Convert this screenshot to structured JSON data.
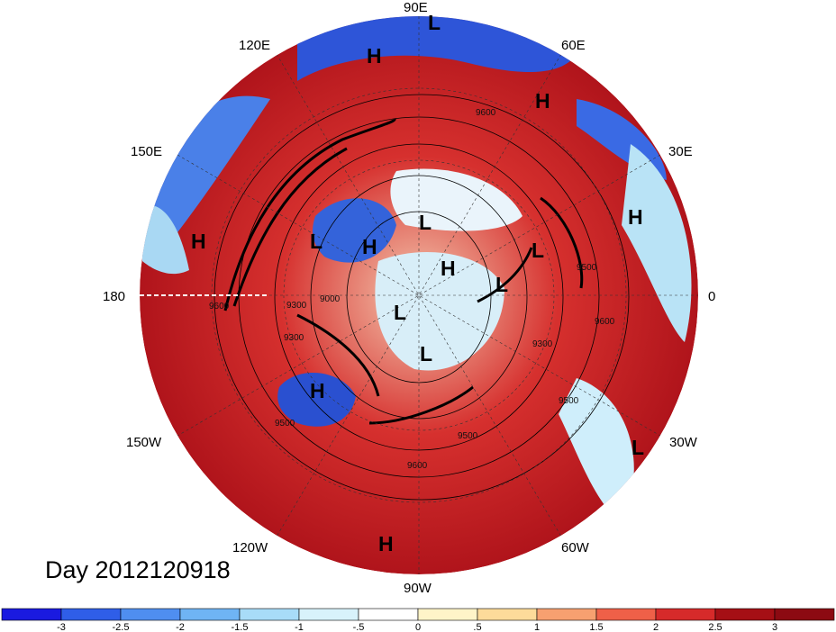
{
  "map": {
    "projection": "north-polar-stereographic",
    "lon_labels": {
      "top": "90E",
      "upper_left": "120E",
      "upper_right": "60E",
      "left_upper": "150E",
      "right_upper": "30E",
      "left": "180",
      "right": "0",
      "left_lower": "150W",
      "right_lower": "30W",
      "lower_left": "120W",
      "lower_right": "60W",
      "bottom": "90W"
    },
    "pressure_centers": [
      "L",
      "H",
      "H",
      "H",
      "H",
      "L",
      "H",
      "L",
      "H",
      "L",
      "L",
      "L",
      "L",
      "H",
      "L",
      "H",
      "H"
    ],
    "contour_labels": [
      "9600",
      "9300",
      "9000",
      "9300",
      "9600",
      "9500",
      "9500",
      "9600",
      "9300",
      "9500",
      "9500",
      "9600",
      "9000",
      "9600",
      "9300"
    ],
    "colors": {
      "deep_red": "#a50f15",
      "red": "#cb181d",
      "blue": "#2b5cd6",
      "light_blue": "#9fd3f0",
      "ocean": "#c21a22"
    }
  },
  "title": "Day 2012120918",
  "colorbar": {
    "ticks": [
      "-3",
      "-2.5",
      "-2",
      "-1.5",
      "-1",
      "-.5",
      "0",
      ".5",
      "1",
      "1.5",
      "2",
      "2.5",
      "3"
    ],
    "colors": [
      "#1a1ae0",
      "#2f5ee8",
      "#4f8ef0",
      "#6fb4f4",
      "#a8dcf8",
      "#d8f2fb",
      "#ffffff",
      "#fff4c8",
      "#fddb9a",
      "#f7a070",
      "#ef6048",
      "#d62a2a",
      "#a50f15",
      "#8c0a12"
    ]
  }
}
